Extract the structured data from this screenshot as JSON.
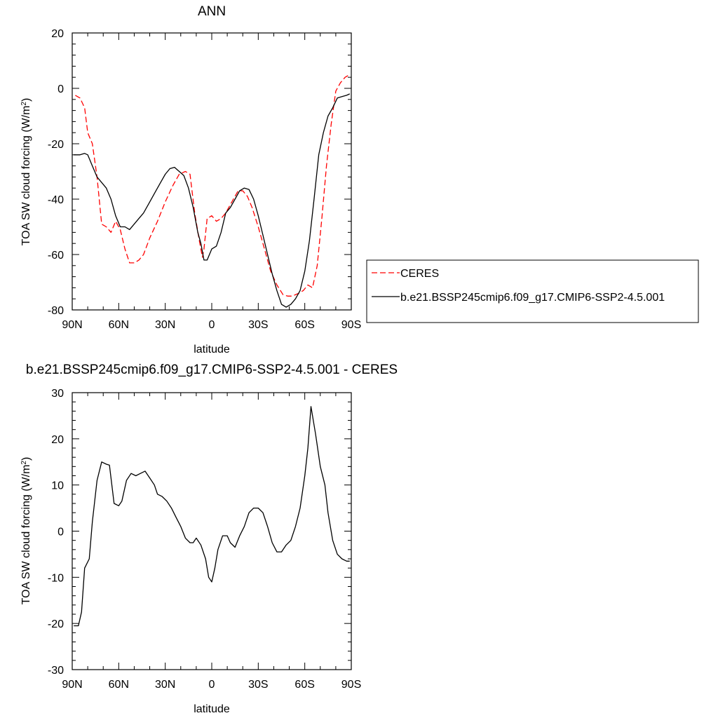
{
  "chart_data": [
    {
      "type": "line",
      "title": "ANN",
      "xlabel": "latitude",
      "ylabel_main": "TOA SW cloud forcing (W/m",
      "ylabel_sup": "2",
      "ylabel_close": ")",
      "xlim": [
        90,
        -90
      ],
      "ylim": [
        -80,
        20
      ],
      "xticks": [
        90,
        60,
        30,
        0,
        -30,
        -60,
        -90
      ],
      "xtick_labels": [
        "90N",
        "60N",
        "30N",
        "0",
        "30S",
        "60S",
        "90S"
      ],
      "yticks": [
        -80,
        -60,
        -40,
        -20,
        0,
        20
      ],
      "ytick_labels": [
        "-80",
        "-60",
        "-40",
        "-20",
        "0",
        "20"
      ],
      "legend": {
        "placement": "right",
        "entries": [
          {
            "name": "CERES",
            "color": "#ff0000",
            "dash": true
          },
          {
            "name": "b.e21.BSSP245cmip6.f09_g17.CMIP6-SSP2-4.5.001",
            "color": "#000000",
            "dash": false
          }
        ]
      },
      "series": [
        {
          "name": "CERES",
          "color": "#ff0000",
          "dash": true,
          "x": [
            88,
            85,
            82,
            80,
            77,
            74,
            71,
            68,
            65,
            62,
            59,
            56,
            53,
            50,
            47,
            44,
            40,
            35,
            30,
            25,
            21,
            17,
            14,
            11,
            8,
            6,
            5,
            3,
            0,
            -3,
            -6,
            -9,
            -13,
            -17,
            -20,
            -23,
            -26,
            -30,
            -34,
            -38,
            -42,
            -46,
            -49,
            -52,
            -56,
            -59,
            -62,
            -65,
            -68,
            -71,
            -74,
            -77,
            -80,
            -83,
            -86,
            -89
          ],
          "y": [
            -2.5,
            -3.5,
            -7,
            -16,
            -20,
            -32,
            -49,
            -50,
            -52,
            -48,
            -51,
            -58,
            -63,
            -63,
            -62,
            -60,
            -54,
            -48,
            -41,
            -35,
            -31,
            -30,
            -31,
            -45,
            -55,
            -61,
            -58,
            -47,
            -46,
            -48,
            -47,
            -45,
            -41,
            -37,
            -37,
            -39,
            -43,
            -50,
            -58,
            -66,
            -71,
            -74.5,
            -75,
            -75,
            -74,
            -73,
            -71,
            -72,
            -64,
            -47,
            -28,
            -13,
            -1,
            2,
            4,
            5
          ]
        },
        {
          "name": "b.e21.BSSP245cmip6.f09_g17.CMIP6-SSP2-4.5.001",
          "color": "#000000",
          "dash": false,
          "x": [
            89,
            85,
            82,
            80,
            77,
            74,
            71,
            68,
            65,
            62,
            59,
            56,
            53,
            50,
            47,
            44,
            40,
            36,
            33,
            30,
            27,
            24,
            21,
            18,
            15,
            12,
            9,
            7,
            5,
            3,
            0,
            -3,
            -6,
            -9,
            -12,
            -15,
            -18,
            -21,
            -24,
            -27,
            -30,
            -33,
            -36,
            -39,
            -42,
            -45,
            -48,
            -51,
            -54,
            -57,
            -60,
            -63,
            -66,
            -69,
            -72,
            -75,
            -78,
            -81,
            -84,
            -87,
            -89
          ],
          "y": [
            -24,
            -24,
            -23.5,
            -24,
            -28,
            -32,
            -34,
            -36,
            -40,
            -46,
            -50,
            -50,
            -51,
            -49,
            -47,
            -45,
            -41,
            -37,
            -34,
            -31,
            -29,
            -28.5,
            -30,
            -31.5,
            -36,
            -43,
            -52,
            -56,
            -62,
            -62,
            -58,
            -57,
            -52,
            -45,
            -43,
            -40,
            -37,
            -36,
            -36.5,
            -40,
            -46,
            -53,
            -60,
            -67,
            -73,
            -78,
            -79,
            -78,
            -76,
            -73,
            -66,
            -55,
            -40,
            -24,
            -16,
            -10,
            -7,
            -3.5,
            -3,
            -2.5,
            -2
          ]
        }
      ]
    },
    {
      "type": "line",
      "title": "b.e21.BSSP245cmip6.f09_g17.CMIP6-SSP2-4.5.001 - CERES",
      "xlabel": "latitude",
      "ylabel_main": "TOA SW cloud forcing (W/m",
      "ylabel_sup": "2",
      "ylabel_close": ")",
      "xlim": [
        90,
        -90
      ],
      "ylim": [
        -30,
        30
      ],
      "xticks": [
        90,
        60,
        30,
        0,
        -30,
        -60,
        -90
      ],
      "xtick_labels": [
        "90N",
        "60N",
        "30N",
        "0",
        "30S",
        "60S",
        "90S"
      ],
      "yticks": [
        -30,
        -20,
        -10,
        0,
        10,
        20,
        30
      ],
      "ytick_labels": [
        "-30",
        "-20",
        "-10",
        "0",
        "10",
        "20",
        "30"
      ],
      "series": [
        {
          "name": "",
          "color": "#000000",
          "dash": false,
          "x": [
            89,
            86,
            84,
            82,
            79,
            77,
            74,
            71,
            68,
            66,
            63,
            60,
            58,
            55,
            52,
            49,
            46,
            43,
            40,
            37,
            35,
            32,
            29,
            26,
            23,
            20,
            17,
            14,
            12,
            10,
            7,
            4,
            2,
            0,
            -2,
            -4,
            -7,
            -10,
            -12,
            -15,
            -18,
            -21,
            -24,
            -27,
            -30,
            -33,
            -36,
            -39,
            -42,
            -45,
            -48,
            -51,
            -54,
            -57,
            -60,
            -62,
            -64,
            -67,
            -70,
            -73,
            -75,
            -78,
            -81,
            -84,
            -87,
            -89
          ],
          "y": [
            -20.5,
            -20.5,
            -17.5,
            -8,
            -6,
            2,
            11,
            15,
            14.5,
            14.3,
            6,
            5.5,
            6.5,
            11,
            12.5,
            12,
            12.5,
            13,
            11.5,
            10,
            8,
            7.5,
            6.5,
            5,
            3,
            1,
            -1.5,
            -2.5,
            -2.5,
            -1.5,
            -3,
            -6,
            -10,
            -11,
            -8,
            -4,
            -1,
            -1,
            -2.5,
            -3.5,
            -1,
            1,
            4,
            5,
            5,
            4,
            1,
            -2.5,
            -4.5,
            -4.5,
            -3,
            -2,
            1,
            5,
            12,
            18,
            27,
            21,
            14,
            10,
            4,
            -2,
            -5,
            -6,
            -6.5,
            -6.5
          ]
        }
      ]
    }
  ]
}
